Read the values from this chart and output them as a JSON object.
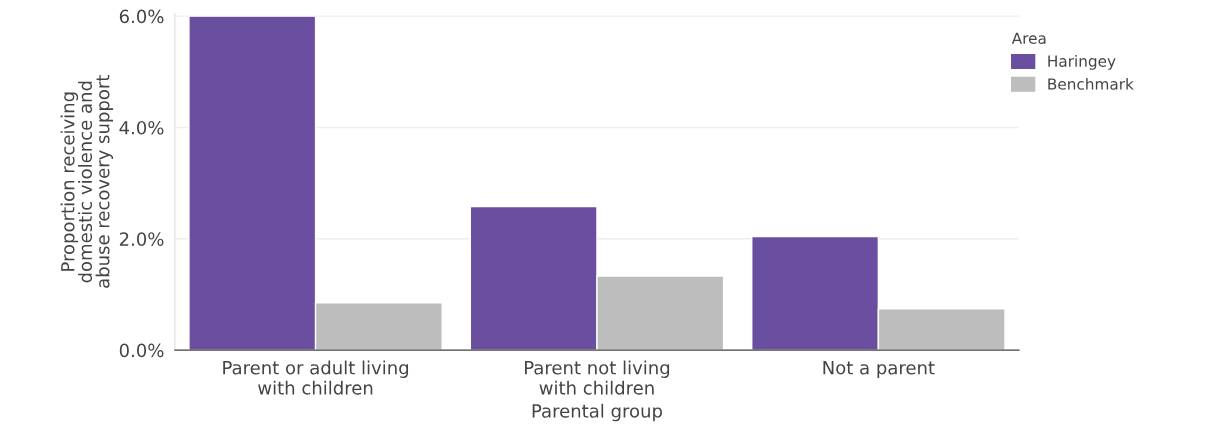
{
  "chart_data": {
    "type": "bar",
    "xlabel": "Parental group",
    "ylabel": "Proportion receiving\ndomestic violence and\nabuse recovery support",
    "legend_title": "Area",
    "categories": [
      "Parent or adult living\nwith children",
      "Parent not living\nwith children",
      "Not a parent"
    ],
    "series": [
      {
        "name": "Haringey",
        "color": "#6a4fa0",
        "values": [
          6.0,
          2.58,
          2.04
        ]
      },
      {
        "name": "Benchmark",
        "color": "#bdbdbd",
        "values": [
          0.85,
          1.33,
          0.74
        ]
      }
    ],
    "ylim": [
      0,
      6.05
    ],
    "yticks": [
      {
        "value": 0,
        "label": "0.0%"
      },
      {
        "value": 2,
        "label": "2.0%"
      },
      {
        "value": 4,
        "label": "4.0%"
      },
      {
        "value": 6,
        "label": "6.0%"
      }
    ],
    "grid": "y",
    "legend": "top right"
  }
}
